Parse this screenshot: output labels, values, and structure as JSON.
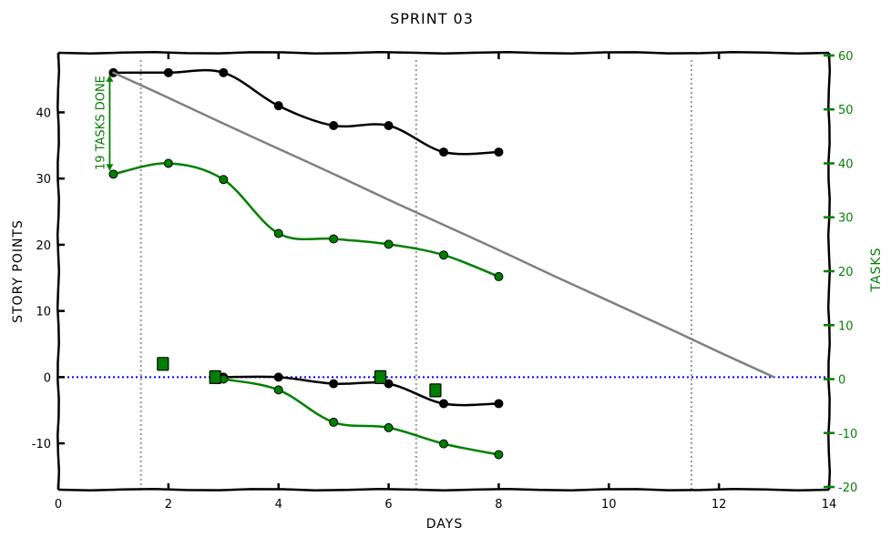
{
  "chart_data": {
    "type": "line",
    "title": "SPRINT 03",
    "xlabel": "DAYS",
    "ylabel": "STORY POINTS",
    "y2label": "TASKS",
    "xlim": [
      0,
      14
    ],
    "ylim": [
      -17,
      49
    ],
    "y2lim": [
      -20.5,
      60.5
    ],
    "xticks": [
      "0",
      "2",
      "4",
      "6",
      "8",
      "10",
      "12",
      "14"
    ],
    "yticks": [
      "-10",
      "0",
      "10",
      "20",
      "30",
      "40"
    ],
    "y2ticks": [
      "-20",
      "-10",
      "0",
      "10",
      "20",
      "30",
      "40",
      "50",
      "60"
    ],
    "grid": false,
    "sprint_boundaries": [
      1.5,
      6.5,
      11.5
    ],
    "annotation": {
      "text": "19 TASKS DONE",
      "x": 1,
      "y_from": 38,
      "y_to": 57
    },
    "colors": {
      "story": "#000000",
      "tasks": "#008000",
      "ideal": "#808080",
      "zero": "#0000ff",
      "boundary": "#999999"
    },
    "series": [
      {
        "axis": "left",
        "color": "#000000",
        "x": [
          1,
          2,
          3,
          4,
          5,
          6,
          7,
          8
        ],
        "values": [
          46,
          46,
          46,
          41,
          38,
          38,
          34,
          34
        ]
      },
      {
        "axis": "left",
        "color": "#000000",
        "x": [
          3,
          4,
          5,
          6,
          7,
          8
        ],
        "values": [
          0,
          0,
          -1,
          -1,
          -4,
          -4
        ]
      },
      {
        "axis": "right",
        "color": "#008000",
        "x": [
          1,
          2,
          3,
          4,
          5,
          6,
          7,
          8
        ],
        "values": [
          38,
          40,
          37,
          27,
          26,
          25,
          23,
          19
        ]
      },
      {
        "axis": "right",
        "color": "#008000",
        "x": [
          3,
          4,
          5,
          6,
          7,
          8
        ],
        "values": [
          0,
          -2,
          -8,
          -9,
          -12,
          -14
        ]
      },
      {
        "axis": "left",
        "color": "#808080",
        "x": [
          1,
          2,
          3,
          4,
          5,
          6,
          7,
          8,
          9,
          10,
          11,
          12,
          13
        ],
        "values": [
          46,
          42.2,
          38.3,
          34.5,
          30.7,
          26.8,
          23,
          19.2,
          15.3,
          11.5,
          7.7,
          3.8,
          0
        ]
      }
    ],
    "markers": {
      "x": [
        1.9,
        2.85,
        5.85,
        6.85
      ],
      "values": [
        2,
        0,
        0,
        -2
      ]
    }
  }
}
